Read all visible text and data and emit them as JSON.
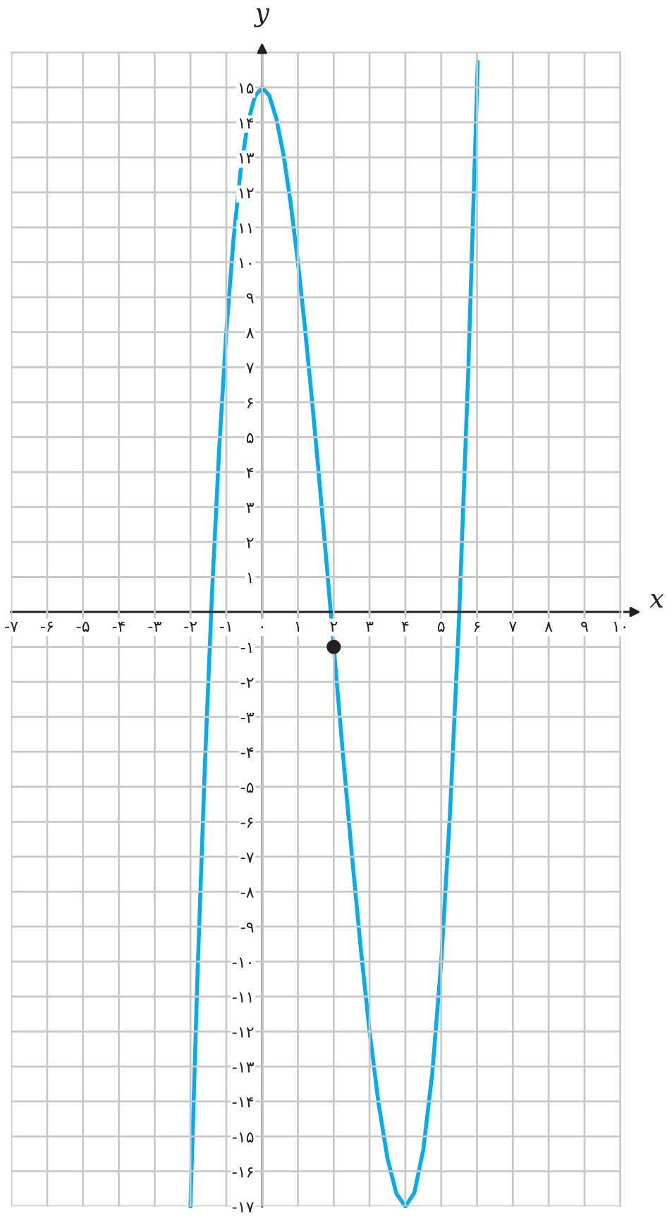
{
  "chart_data": {
    "type": "line",
    "xlabel": "x",
    "ylabel": "y",
    "xlim": [
      -7,
      10
    ],
    "ylim": [
      -17,
      16
    ],
    "xticks": [
      {
        "value": -7,
        "label": "-۷"
      },
      {
        "value": -6,
        "label": "-۶"
      },
      {
        "value": -5,
        "label": "-۵"
      },
      {
        "value": -4,
        "label": "-۴"
      },
      {
        "value": -3,
        "label": "-۳"
      },
      {
        "value": -2,
        "label": "-۲"
      },
      {
        "value": -1,
        "label": "-۱"
      },
      {
        "value": 0,
        "label": "۰"
      },
      {
        "value": 1,
        "label": "۱"
      },
      {
        "value": 2,
        "label": "۲"
      },
      {
        "value": 3,
        "label": "۳"
      },
      {
        "value": 4,
        "label": "۴"
      },
      {
        "value": 5,
        "label": "۵"
      },
      {
        "value": 6,
        "label": "۶"
      },
      {
        "value": 7,
        "label": "۷"
      },
      {
        "value": 8,
        "label": "۸"
      },
      {
        "value": 9,
        "label": "۹"
      },
      {
        "value": 10,
        "label": "۱۰"
      }
    ],
    "yticks": [
      {
        "value": -17,
        "label": "-۱۷"
      },
      {
        "value": -16,
        "label": "-۱۶"
      },
      {
        "value": -15,
        "label": "-۱۵"
      },
      {
        "value": -14,
        "label": "-۱۴"
      },
      {
        "value": -13,
        "label": "-۱۳"
      },
      {
        "value": -12,
        "label": "-۱۲"
      },
      {
        "value": -11,
        "label": "-۱۱"
      },
      {
        "value": -10,
        "label": "-۱۰"
      },
      {
        "value": -9,
        "label": "-۹"
      },
      {
        "value": -8,
        "label": "-۸"
      },
      {
        "value": -7,
        "label": "-۷"
      },
      {
        "value": -6,
        "label": "-۶"
      },
      {
        "value": -5,
        "label": "-۵"
      },
      {
        "value": -4,
        "label": "-۴"
      },
      {
        "value": -3,
        "label": "-۳"
      },
      {
        "value": -2,
        "label": "-۲"
      },
      {
        "value": -1,
        "label": "-۱"
      },
      {
        "value": 1,
        "label": "۱"
      },
      {
        "value": 2,
        "label": "۲"
      },
      {
        "value": 3,
        "label": "۳"
      },
      {
        "value": 4,
        "label": "۴"
      },
      {
        "value": 5,
        "label": "۵"
      },
      {
        "value": 6,
        "label": "۶"
      },
      {
        "value": 7,
        "label": "۷"
      },
      {
        "value": 8,
        "label": "۸"
      },
      {
        "value": 9,
        "label": "۹"
      },
      {
        "value": 10,
        "label": "۱۰"
      },
      {
        "value": 11,
        "label": "۱۱"
      },
      {
        "value": 12,
        "label": "۱۲"
      },
      {
        "value": 13,
        "label": "۱۳"
      },
      {
        "value": 14,
        "label": "۱۴"
      },
      {
        "value": 15,
        "label": "۱۵"
      }
    ],
    "grid": true,
    "line_style": "solid",
    "series": [
      {
        "color": "#00aeef",
        "x": [
          -2,
          -1.8,
          -1.6,
          -1.4,
          -1.2,
          -1,
          -0.8,
          -0.6,
          -0.4,
          -0.2,
          0,
          0.2,
          0.4,
          0.6,
          0.8,
          1,
          1.2,
          1.4,
          1.6,
          1.8,
          2,
          2.25,
          2.5,
          2.75,
          3,
          3.25,
          3.5,
          3.75,
          4,
          4.25,
          4.5,
          4.75,
          5,
          5.25,
          5.5,
          5.75,
          6,
          6.02
        ],
        "values": [
          -17,
          -10.27,
          -4.46,
          0.5,
          4.63,
          8,
          10.65,
          12.62,
          13.98,
          14.75,
          15,
          14.77,
          14.1,
          13.06,
          11.67,
          10,
          8.09,
          5.98,
          3.74,
          1.39,
          -1,
          -3.98,
          -6.88,
          -9.58,
          -12,
          -14.05,
          -15.63,
          -16.64,
          -17,
          -16.61,
          -15.38,
          -13.2,
          -10,
          -5.67,
          -0.13,
          6.73,
          15,
          15.73
        ]
      },
      {
        "type": "scatter",
        "color": "#231f20",
        "marker": "circle",
        "x": [
          2
        ],
        "values": [
          -1
        ]
      }
    ]
  }
}
